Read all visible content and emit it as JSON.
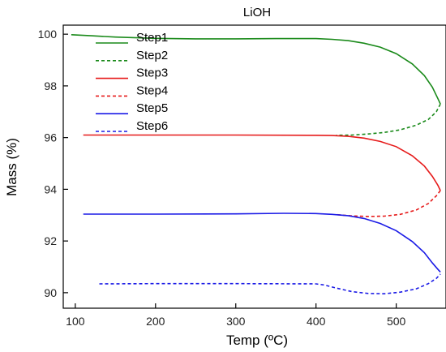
{
  "chart_data": {
    "type": "line",
    "title": "LiOH",
    "xlabel": "Temp (ºC)",
    "ylabel": "Mass (%)",
    "xlim": [
      85,
      562
    ],
    "ylim": [
      89.4,
      100.35
    ],
    "xticks": [
      100,
      200,
      300,
      400,
      500
    ],
    "yticks": [
      90,
      92,
      94,
      96,
      98,
      100
    ],
    "grid": false,
    "legend_position": "top-left",
    "series": [
      {
        "name": "Step1",
        "color": "#1a8a1a",
        "dash": "solid",
        "points": [
          [
            95,
            99.98
          ],
          [
            120,
            99.94
          ],
          [
            150,
            99.89
          ],
          [
            200,
            99.84
          ],
          [
            250,
            99.82
          ],
          [
            300,
            99.82
          ],
          [
            350,
            99.83
          ],
          [
            400,
            99.83
          ],
          [
            420,
            99.8
          ],
          [
            440,
            99.75
          ],
          [
            460,
            99.65
          ],
          [
            480,
            99.5
          ],
          [
            500,
            99.25
          ],
          [
            520,
            98.85
          ],
          [
            535,
            98.4
          ],
          [
            545,
            97.95
          ],
          [
            552,
            97.5
          ],
          [
            555,
            97.3
          ]
        ]
      },
      {
        "name": "Step2",
        "color": "#1a8a1a",
        "dash": "dashed",
        "points": [
          [
            555,
            97.3
          ],
          [
            550,
            97.0
          ],
          [
            540,
            96.7
          ],
          [
            525,
            96.48
          ],
          [
            505,
            96.3
          ],
          [
            485,
            96.2
          ],
          [
            465,
            96.14
          ],
          [
            445,
            96.1
          ],
          [
            425,
            96.09
          ]
        ]
      },
      {
        "name": "Step3",
        "color": "#e61a1a",
        "dash": "solid",
        "points": [
          [
            110,
            96.1
          ],
          [
            200,
            96.1
          ],
          [
            300,
            96.1
          ],
          [
            400,
            96.09
          ],
          [
            420,
            96.08
          ],
          [
            440,
            96.05
          ],
          [
            460,
            95.98
          ],
          [
            480,
            95.85
          ],
          [
            500,
            95.65
          ],
          [
            520,
            95.3
          ],
          [
            535,
            94.9
          ],
          [
            545,
            94.5
          ],
          [
            552,
            94.15
          ],
          [
            555,
            93.95
          ]
        ]
      },
      {
        "name": "Step4",
        "color": "#e61a1a",
        "dash": "dashed",
        "points": [
          [
            555,
            93.95
          ],
          [
            550,
            93.75
          ],
          [
            540,
            93.45
          ],
          [
            525,
            93.2
          ],
          [
            505,
            93.03
          ],
          [
            485,
            92.96
          ],
          [
            465,
            92.95
          ],
          [
            445,
            92.97
          ],
          [
            425,
            93.02
          ]
        ]
      },
      {
        "name": "Step5",
        "color": "#1a1ae6",
        "dash": "solid",
        "points": [
          [
            110,
            93.04
          ],
          [
            200,
            93.04
          ],
          [
            300,
            93.05
          ],
          [
            360,
            93.07
          ],
          [
            400,
            93.06
          ],
          [
            420,
            93.03
          ],
          [
            440,
            92.98
          ],
          [
            460,
            92.87
          ],
          [
            480,
            92.68
          ],
          [
            500,
            92.4
          ],
          [
            520,
            91.98
          ],
          [
            535,
            91.55
          ],
          [
            545,
            91.15
          ],
          [
            552,
            90.9
          ],
          [
            555,
            90.8
          ]
        ]
      },
      {
        "name": "Step6",
        "color": "#1a1ae6",
        "dash": "dashed",
        "points": [
          [
            130,
            90.34
          ],
          [
            200,
            90.35
          ],
          [
            300,
            90.35
          ],
          [
            400,
            90.34
          ],
          [
            410,
            90.3
          ],
          [
            425,
            90.18
          ],
          [
            445,
            90.04
          ],
          [
            465,
            89.97
          ],
          [
            485,
            89.96
          ],
          [
            505,
            90.02
          ],
          [
            525,
            90.15
          ],
          [
            540,
            90.35
          ],
          [
            550,
            90.55
          ],
          [
            555,
            90.72
          ]
        ]
      }
    ]
  }
}
